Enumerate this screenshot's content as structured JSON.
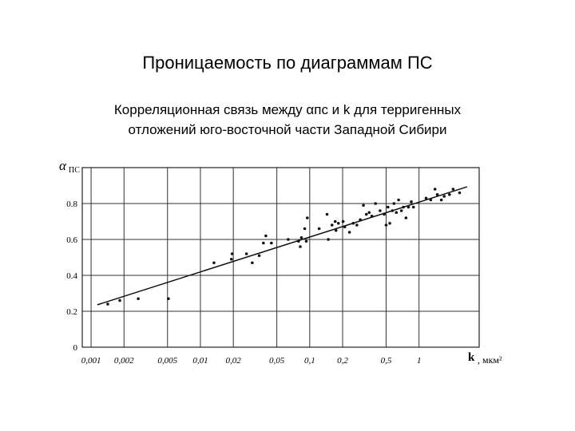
{
  "title": "Проницаемость по диаграммам ПС",
  "subtitle": [
    "Корреляционная связь между αпс и k для терригенных",
    "отложений юго-восточной части Западной Сибири"
  ],
  "chart_data": {
    "type": "scatter",
    "y_label": "α",
    "y_label_sub": "ПС",
    "x_label": "k",
    "x_unit": ", мкм²",
    "x_log": true,
    "grid": true,
    "color": "#111111",
    "xlim": [
      0.00083,
      3.55
    ],
    "ylim": [
      0,
      1.0
    ],
    "xticks": [
      {
        "value": 0.001,
        "label": "0,001"
      },
      {
        "value": 0.002,
        "label": "0,002"
      },
      {
        "value": 0.005,
        "label": "0,005"
      },
      {
        "value": 0.01,
        "label": "0,01"
      },
      {
        "value": 0.02,
        "label": "0,02"
      },
      {
        "value": 0.05,
        "label": "0,05"
      },
      {
        "value": 0.1,
        "label": "0,1"
      },
      {
        "value": 0.2,
        "label": "0,2"
      },
      {
        "value": 0.5,
        "label": "0,5"
      },
      1
    ],
    "yticks": [
      0,
      0.2,
      0.4,
      0.6,
      0.8
    ],
    "x": [
      0.00142,
      0.00183,
      0.0027,
      0.0051,
      0.0133,
      0.0192,
      0.0195,
      0.0264,
      0.0298,
      0.0345,
      0.0377,
      0.0397,
      0.0446,
      0.0636,
      0.079,
      0.082,
      0.084,
      0.09,
      0.095,
      0.093,
      0.122,
      0.144,
      0.148,
      0.16,
      0.171,
      0.174,
      0.183,
      0.202,
      0.209,
      0.231,
      0.25,
      0.27,
      0.29,
      0.31,
      0.33,
      0.35,
      0.37,
      0.4,
      0.44,
      0.48,
      0.5,
      0.52,
      0.54,
      0.57,
      0.59,
      0.62,
      0.65,
      0.69,
      0.72,
      0.76,
      0.8,
      0.85,
      0.89,
      1.16,
      1.28,
      1.4,
      1.47,
      1.6,
      1.7,
      1.9,
      2.05,
      2.35
    ],
    "values": [
      0.24,
      0.26,
      0.27,
      0.27,
      0.47,
      0.49,
      0.52,
      0.52,
      0.47,
      0.51,
      0.58,
      0.62,
      0.58,
      0.6,
      0.59,
      0.56,
      0.61,
      0.66,
      0.72,
      0.59,
      0.66,
      0.74,
      0.6,
      0.68,
      0.7,
      0.65,
      0.69,
      0.7,
      0.67,
      0.64,
      0.69,
      0.68,
      0.71,
      0.79,
      0.74,
      0.75,
      0.73,
      0.8,
      0.76,
      0.74,
      0.68,
      0.78,
      0.69,
      0.76,
      0.8,
      0.75,
      0.82,
      0.76,
      0.78,
      0.72,
      0.78,
      0.81,
      0.78,
      0.83,
      0.82,
      0.88,
      0.85,
      0.82,
      0.84,
      0.85,
      0.88,
      0.86
    ],
    "trend": {
      "x": [
        0.00114,
        2.75
      ],
      "values": [
        0.236,
        0.893
      ]
    }
  }
}
